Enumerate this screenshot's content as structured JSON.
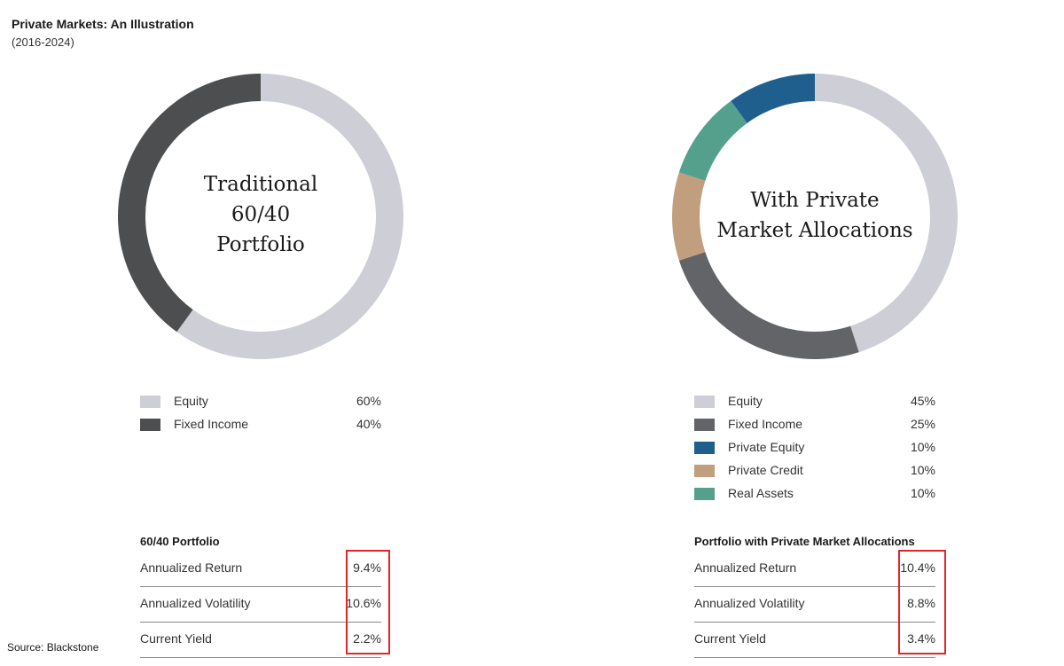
{
  "header": {
    "title": "Private Markets: An Illustration",
    "subtitle": "(2016-2024)"
  },
  "chart_data": [
    {
      "type": "pie",
      "center_label": [
        "Traditional",
        "60/40",
        "Portfolio"
      ],
      "categories": [
        "Equity",
        "Fixed Income"
      ],
      "values": [
        60,
        40
      ],
      "value_labels": [
        "60%",
        "40%"
      ],
      "colors": [
        "#cdced6",
        "#4d4e50"
      ],
      "stats": {
        "title": "60/40 Portfolio",
        "rows": [
          {
            "label": "Annualized Return",
            "value": "9.4%"
          },
          {
            "label": "Annualized Volatility",
            "value": "10.6%"
          },
          {
            "label": "Current Yield",
            "value": "2.2%"
          }
        ]
      }
    },
    {
      "type": "pie",
      "center_label": [
        "With Private",
        "Market Allocations"
      ],
      "categories": [
        "Equity",
        "Fixed Income",
        "Private Equity",
        "Private Credit",
        "Real Assets"
      ],
      "values": [
        45,
        25,
        10,
        10,
        10
      ],
      "value_labels": [
        "45%",
        "25%",
        "10%",
        "10%",
        "10%"
      ],
      "colors": [
        "#cdced6",
        "#626468",
        "#1f5f8e",
        "#c19f7e",
        "#55a08d"
      ],
      "draw_order": [
        0,
        1,
        3,
        4,
        2
      ],
      "stats": {
        "title": "Portfolio with Private Market Allocations",
        "rows": [
          {
            "label": "Annualized Return",
            "value": "10.4%"
          },
          {
            "label": "Annualized Volatility",
            "value": "8.8%"
          },
          {
            "label": "Current Yield",
            "value": "3.4%"
          }
        ]
      }
    }
  ],
  "highlight_color": "#e0262b",
  "footer": {
    "source": "Source: Blackstone"
  }
}
